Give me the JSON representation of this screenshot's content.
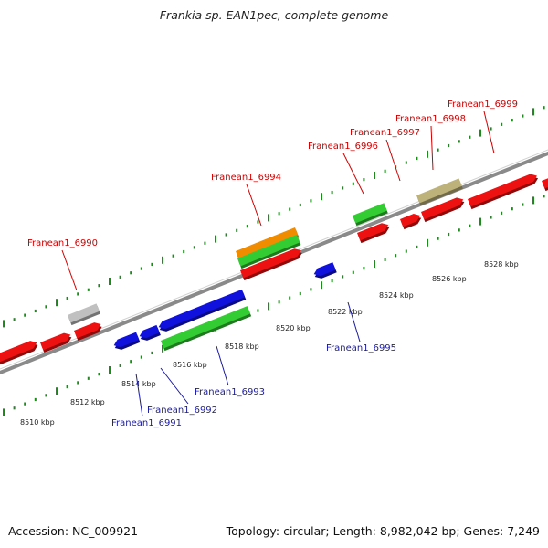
{
  "title": "Frankia sp. EAN1pec, complete genome",
  "footer": {
    "accession": "Accession: NC_009921",
    "summary": "Topology: circular; Length: 8,982,042 bp; Genes: 7,249"
  },
  "ticks": [
    {
      "label": "8510 kbp",
      "kbp": 8510
    },
    {
      "label": "8512 kbp",
      "kbp": 8512
    },
    {
      "label": "8514 kbp",
      "kbp": 8514
    },
    {
      "label": "8516 kbp",
      "kbp": 8516
    },
    {
      "label": "8518 kbp",
      "kbp": 8518
    },
    {
      "label": "8520 kbp",
      "kbp": 8520
    },
    {
      "label": "8522 kbp",
      "kbp": 8522
    },
    {
      "label": "8524 kbp",
      "kbp": 8524
    },
    {
      "label": "8526 kbp",
      "kbp": 8526
    },
    {
      "label": "8528 kbp",
      "kbp": 8528
    }
  ],
  "top_labels": [
    {
      "text": "Franean1_6990"
    },
    {
      "text": "Franean1_6994"
    },
    {
      "text": "Franean1_6996"
    },
    {
      "text": "Franean1_6997"
    },
    {
      "text": "Franean1_6998"
    },
    {
      "text": "Franean1_6999"
    }
  ],
  "bottom_labels": [
    {
      "text": "Franean1_6991"
    },
    {
      "text": "Franean1_6992"
    },
    {
      "text": "Franean1_6993"
    },
    {
      "text": "Franean1_6995"
    }
  ],
  "colors": {
    "forward_gene": "#ee1111",
    "reverse_gene": "#1111dd",
    "green_feature": "#33cc33",
    "orange_feature": "#f08c00",
    "grey_feature": "#c0c0c0",
    "khaki_feature": "#bdb27a",
    "tick": "#1e8a1e",
    "backbone": "#8a8a8a",
    "top_label": "#cc0000",
    "bottom_label": "#1a1aa0"
  }
}
